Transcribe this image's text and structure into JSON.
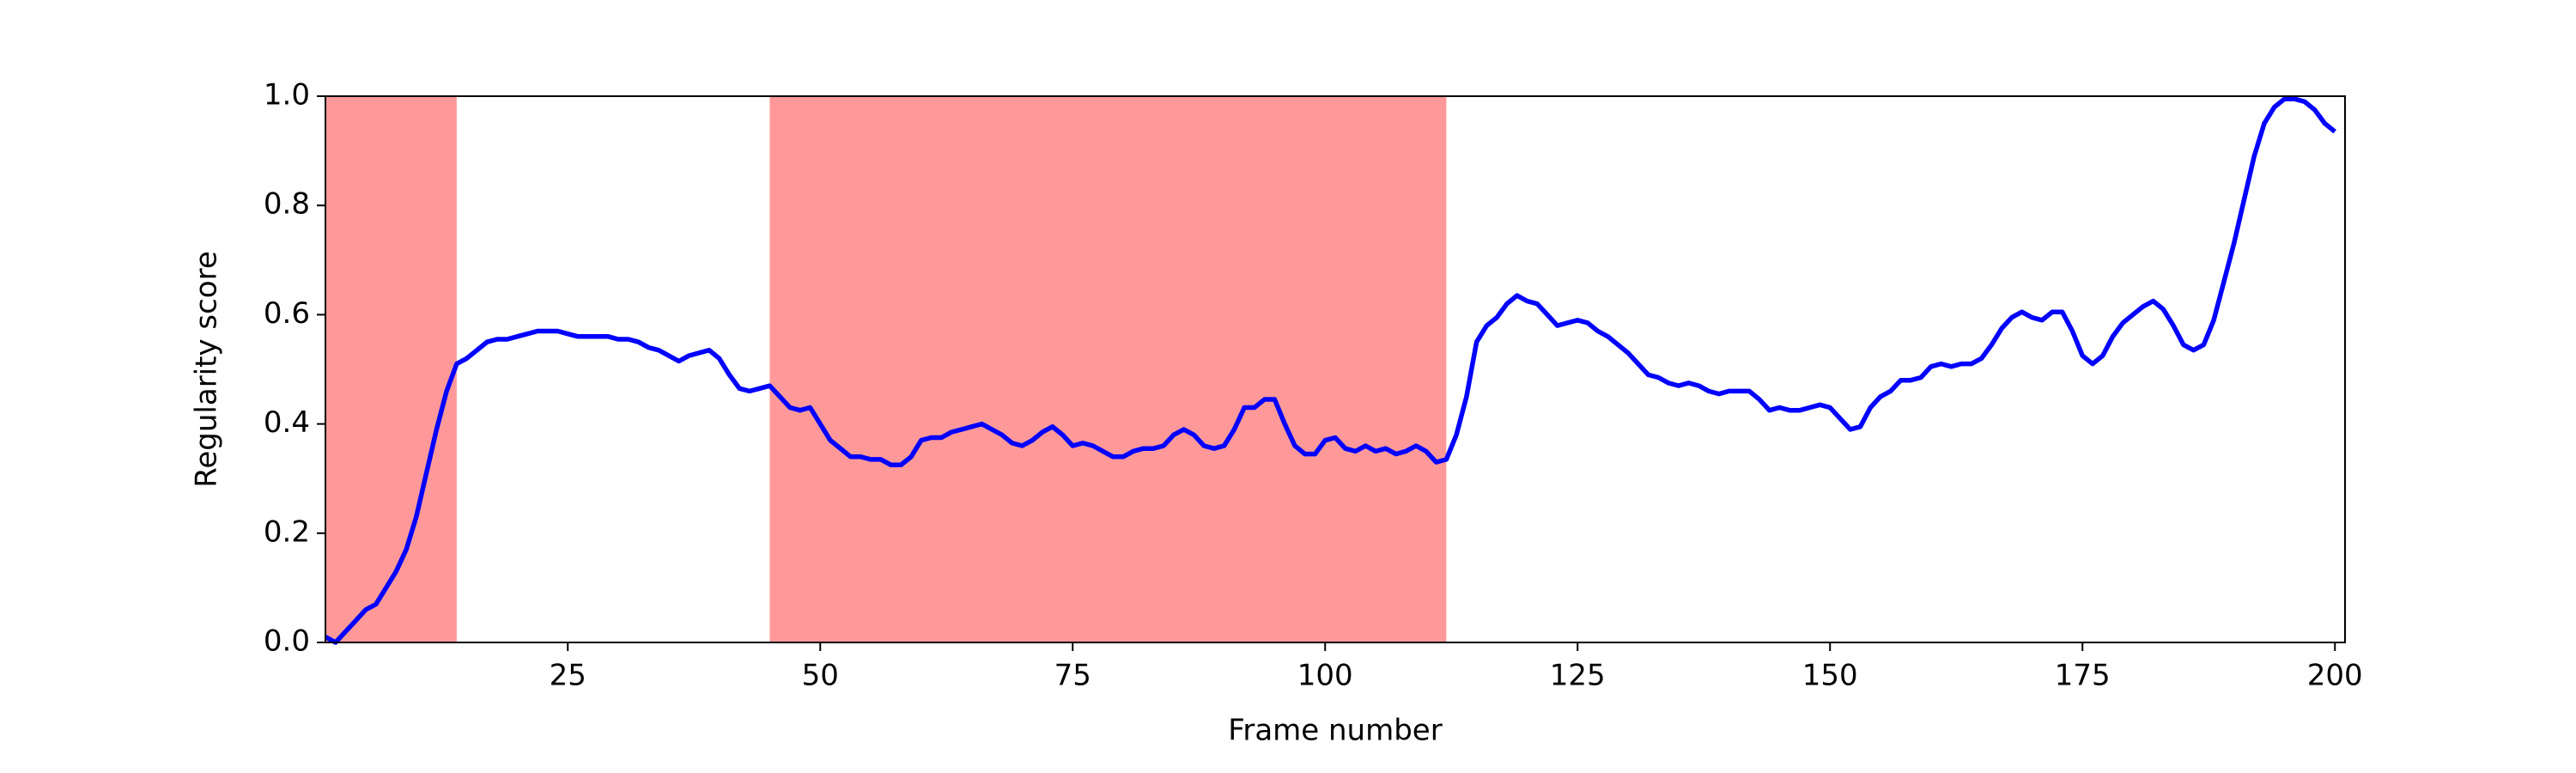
{
  "chart_data": {
    "type": "line",
    "xlabel": "Frame number",
    "ylabel": "Regularity score",
    "x": [
      1,
      2,
      3,
      4,
      5,
      6,
      7,
      8,
      9,
      10,
      11,
      12,
      13,
      14,
      15,
      16,
      17,
      18,
      19,
      20,
      21,
      22,
      23,
      24,
      25,
      26,
      27,
      28,
      29,
      30,
      31,
      32,
      33,
      34,
      35,
      36,
      37,
      38,
      39,
      40,
      41,
      42,
      43,
      44,
      45,
      46,
      47,
      48,
      49,
      50,
      51,
      52,
      53,
      54,
      55,
      56,
      57,
      58,
      59,
      60,
      61,
      62,
      63,
      64,
      65,
      66,
      67,
      68,
      69,
      70,
      71,
      72,
      73,
      74,
      75,
      76,
      77,
      78,
      79,
      80,
      81,
      82,
      83,
      84,
      85,
      86,
      87,
      88,
      89,
      90,
      91,
      92,
      93,
      94,
      95,
      96,
      97,
      98,
      99,
      100,
      101,
      102,
      103,
      104,
      105,
      106,
      107,
      108,
      109,
      110,
      111,
      112,
      113,
      114,
      115,
      116,
      117,
      118,
      119,
      120,
      121,
      122,
      123,
      124,
      125,
      126,
      127,
      128,
      129,
      130,
      131,
      132,
      133,
      134,
      135,
      136,
      137,
      138,
      139,
      140,
      141,
      142,
      143,
      144,
      145,
      146,
      147,
      148,
      149,
      150,
      151,
      152,
      153,
      154,
      155,
      156,
      157,
      158,
      159,
      160,
      161,
      162,
      163,
      164,
      165,
      166,
      167,
      168,
      169,
      170,
      171,
      172,
      173,
      174,
      175,
      176,
      177,
      178,
      179,
      180,
      181,
      182,
      183,
      184,
      185,
      186,
      187,
      188,
      189,
      190,
      191,
      192,
      193,
      194,
      195,
      196,
      197,
      198,
      199,
      200
    ],
    "values": [
      0.01,
      0.0,
      0.02,
      0.04,
      0.06,
      0.07,
      0.1,
      0.13,
      0.17,
      0.23,
      0.31,
      0.39,
      0.46,
      0.51,
      0.52,
      0.535,
      0.55,
      0.555,
      0.555,
      0.56,
      0.565,
      0.57,
      0.57,
      0.57,
      0.565,
      0.56,
      0.56,
      0.56,
      0.56,
      0.555,
      0.555,
      0.55,
      0.54,
      0.535,
      0.525,
      0.515,
      0.525,
      0.53,
      0.535,
      0.52,
      0.49,
      0.465,
      0.46,
      0.465,
      0.47,
      0.45,
      0.43,
      0.425,
      0.43,
      0.4,
      0.37,
      0.355,
      0.34,
      0.34,
      0.335,
      0.335,
      0.325,
      0.325,
      0.34,
      0.37,
      0.375,
      0.375,
      0.385,
      0.39,
      0.395,
      0.4,
      0.39,
      0.38,
      0.365,
      0.36,
      0.37,
      0.385,
      0.395,
      0.38,
      0.36,
      0.365,
      0.36,
      0.35,
      0.34,
      0.34,
      0.35,
      0.355,
      0.355,
      0.36,
      0.38,
      0.39,
      0.38,
      0.36,
      0.355,
      0.36,
      0.39,
      0.43,
      0.43,
      0.445,
      0.445,
      0.4,
      0.36,
      0.345,
      0.345,
      0.37,
      0.375,
      0.355,
      0.35,
      0.36,
      0.35,
      0.355,
      0.345,
      0.35,
      0.36,
      0.35,
      0.33,
      0.335,
      0.38,
      0.45,
      0.55,
      0.58,
      0.595,
      0.62,
      0.635,
      0.625,
      0.62,
      0.6,
      0.58,
      0.585,
      0.59,
      0.585,
      0.57,
      0.56,
      0.545,
      0.53,
      0.51,
      0.49,
      0.485,
      0.475,
      0.47,
      0.475,
      0.47,
      0.46,
      0.455,
      0.46,
      0.46,
      0.46,
      0.445,
      0.425,
      0.43,
      0.425,
      0.425,
      0.43,
      0.435,
      0.43,
      0.41,
      0.39,
      0.395,
      0.43,
      0.45,
      0.46,
      0.48,
      0.48,
      0.485,
      0.505,
      0.51,
      0.505,
      0.51,
      0.51,
      0.52,
      0.545,
      0.575,
      0.595,
      0.605,
      0.595,
      0.59,
      0.605,
      0.605,
      0.57,
      0.525,
      0.51,
      0.525,
      0.56,
      0.585,
      0.6,
      0.615,
      0.625,
      0.61,
      0.58,
      0.545,
      0.535,
      0.545,
      0.59,
      0.66,
      0.73,
      0.81,
      0.89,
      0.95,
      0.98,
      0.995,
      0.995,
      0.99,
      0.975,
      0.95,
      0.935
    ],
    "color": "#0000ff",
    "shaded_regions": [
      [
        1,
        14
      ],
      [
        45,
        112
      ]
    ],
    "shade_color": "#ff9999",
    "xlim": [
      1,
      201
    ],
    "xticks": [
      25,
      50,
      75,
      100,
      125,
      150,
      175,
      200
    ],
    "ylim": [
      0,
      1
    ],
    "yticks": [
      {
        "value": 0,
        "label": "0.0"
      },
      0.2,
      0.4,
      0.6,
      0.8,
      {
        "value": 1,
        "label": "1.0"
      }
    ],
    "grid": false
  }
}
